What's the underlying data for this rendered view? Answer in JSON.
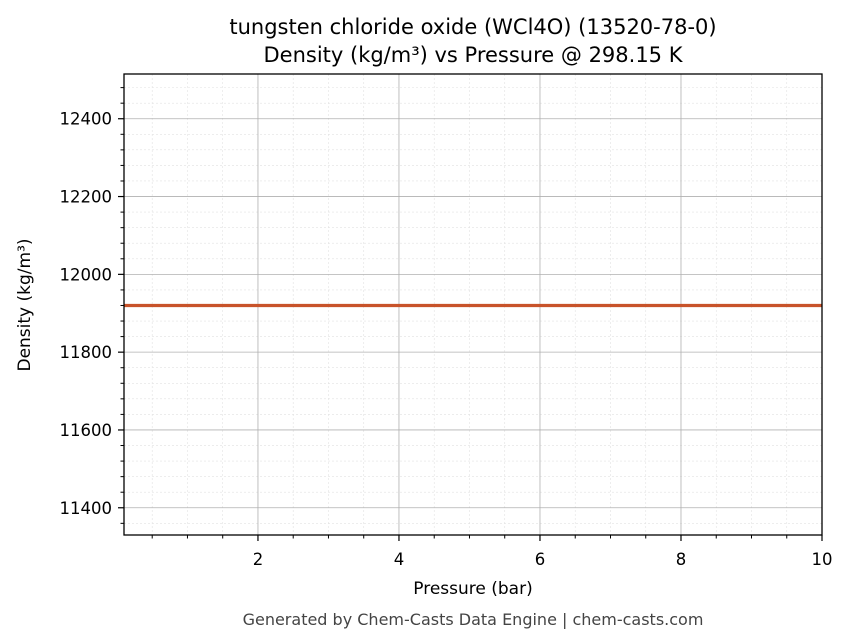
{
  "chart_data": {
    "type": "line",
    "title": "tungsten chloride oxide (WCl4O) (13520-78-0)",
    "subtitle": "Density (kg/m³) vs Pressure @ 298.15 K",
    "xlabel": "Pressure (bar)",
    "ylabel": "Density (kg/m³)",
    "xlim": [
      0.1,
      10
    ],
    "ylim": [
      11330,
      12515
    ],
    "xticks": [
      2,
      4,
      6,
      8,
      10
    ],
    "yticks": [
      11400,
      11600,
      11800,
      12000,
      12200,
      12400
    ],
    "grid": true,
    "series": [
      {
        "color": "#c8532a",
        "x": [
          0.1,
          1,
          2,
          3,
          4,
          5,
          6,
          7,
          8,
          9,
          10
        ],
        "y": [
          11920,
          11920,
          11920,
          11920,
          11920,
          11920,
          11920,
          11920,
          11920,
          11920,
          11920
        ]
      }
    ]
  },
  "footer": "Generated by Chem-Casts Data Engine | chem-casts.com"
}
